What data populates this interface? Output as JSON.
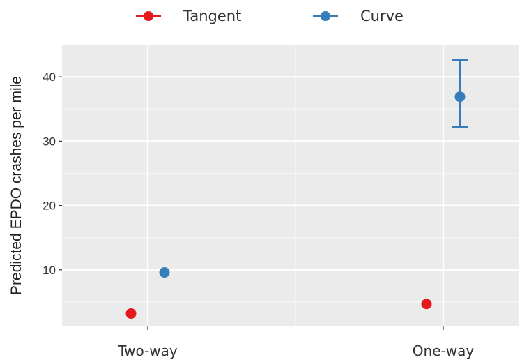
{
  "chart_data": {
    "type": "scatter",
    "title": "",
    "xlabel": "",
    "ylabel": "Predicted EPDO crashes per mile",
    "categories": [
      "Two-way",
      "One-way"
    ],
    "ylim": [
      1.2,
      45.0
    ],
    "yticks": [
      10,
      20,
      30,
      40
    ],
    "grid": true,
    "legend_position": "top",
    "series": [
      {
        "name": "Tangent",
        "color": "#e41a1c",
        "values": [
          3.2,
          4.7
        ],
        "ci_low": [
          null,
          null
        ],
        "ci_high": [
          null,
          null
        ]
      },
      {
        "name": "Curve",
        "color": "#377eb8",
        "values": [
          9.6,
          36.9
        ],
        "ci_low": [
          null,
          32.2
        ],
        "ci_high": [
          null,
          42.6
        ]
      }
    ]
  }
}
